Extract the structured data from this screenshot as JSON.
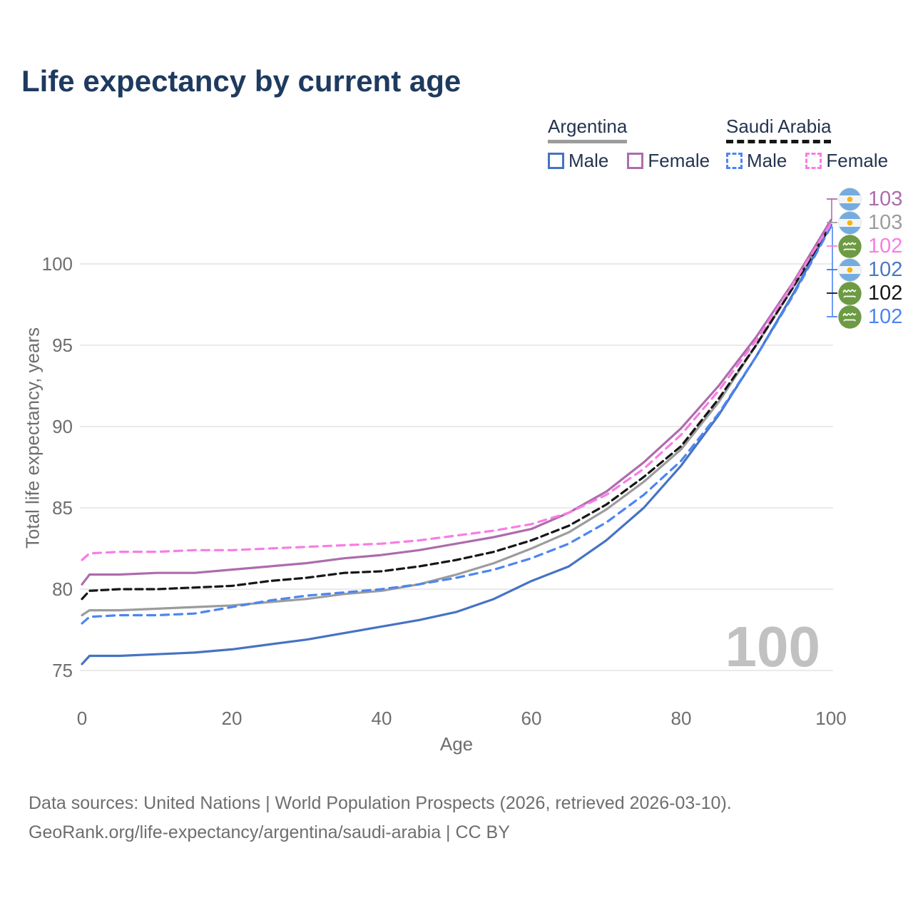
{
  "title": "Life expectancy by current age",
  "legend": {
    "groups": [
      {
        "country": "Argentina",
        "combined_line_style": "solid",
        "combined_line_color": "#9c9c9c",
        "items": [
          {
            "label": "Male",
            "color": "#4673c2",
            "dashed": false
          },
          {
            "label": "Female",
            "color": "#ad6cad",
            "dashed": false
          }
        ]
      },
      {
        "country": "Saudi Arabia",
        "combined_line_style": "dashed",
        "combined_line_color": "#161616",
        "items": [
          {
            "label": "Male",
            "color": "#4d85f2",
            "dashed": true
          },
          {
            "label": "Female",
            "color": "#f97ce3",
            "dashed": true
          }
        ]
      }
    ]
  },
  "chart_data": {
    "type": "line",
    "title": "Life expectancy by current age",
    "xlabel": "Age",
    "ylabel": "Total life expectancy, years",
    "xlim": [
      0,
      100
    ],
    "ylim": [
      73.5,
      103.5
    ],
    "x_ticks": [
      0,
      20,
      40,
      60,
      80,
      100
    ],
    "y_ticks": [
      75,
      80,
      85,
      90,
      95,
      100
    ],
    "grid": "horizontal",
    "legend_position": "top-right",
    "series": [
      {
        "name": "Argentina Both sexes",
        "country": "Argentina",
        "sex": "Both",
        "color": "#9c9c9c",
        "dash": false,
        "points": [
          [
            0,
            78.4
          ],
          [
            1,
            78.7
          ],
          [
            5,
            78.7
          ],
          [
            10,
            78.8
          ],
          [
            15,
            78.9
          ],
          [
            20,
            79.0
          ],
          [
            25,
            79.2
          ],
          [
            30,
            79.4
          ],
          [
            35,
            79.7
          ],
          [
            40,
            79.9
          ],
          [
            45,
            80.3
          ],
          [
            50,
            80.9
          ],
          [
            55,
            81.6
          ],
          [
            60,
            82.5
          ],
          [
            65,
            83.5
          ],
          [
            70,
            84.9
          ],
          [
            75,
            86.6
          ],
          [
            80,
            88.6
          ],
          [
            85,
            91.5
          ],
          [
            90,
            95.0
          ],
          [
            95,
            98.6
          ],
          [
            100,
            102.6
          ]
        ]
      },
      {
        "name": "Argentina Male",
        "country": "Argentina",
        "sex": "Male",
        "color": "#4673c2",
        "dash": false,
        "points": [
          [
            0,
            75.4
          ],
          [
            1,
            75.9
          ],
          [
            5,
            75.9
          ],
          [
            10,
            76.0
          ],
          [
            15,
            76.1
          ],
          [
            20,
            76.3
          ],
          [
            25,
            76.6
          ],
          [
            30,
            76.9
          ],
          [
            35,
            77.3
          ],
          [
            40,
            77.7
          ],
          [
            45,
            78.1
          ],
          [
            50,
            78.6
          ],
          [
            55,
            79.4
          ],
          [
            60,
            80.5
          ],
          [
            65,
            81.4
          ],
          [
            70,
            83.0
          ],
          [
            75,
            85.0
          ],
          [
            80,
            87.6
          ],
          [
            85,
            90.7
          ],
          [
            90,
            94.3
          ],
          [
            95,
            98.2
          ],
          [
            100,
            102.4
          ]
        ]
      },
      {
        "name": "Argentina Female",
        "country": "Argentina",
        "sex": "Female",
        "color": "#ad6cad",
        "dash": false,
        "points": [
          [
            0,
            80.3
          ],
          [
            1,
            80.9
          ],
          [
            5,
            80.9
          ],
          [
            10,
            81.0
          ],
          [
            15,
            81.0
          ],
          [
            20,
            81.2
          ],
          [
            25,
            81.4
          ],
          [
            30,
            81.6
          ],
          [
            35,
            81.9
          ],
          [
            40,
            82.1
          ],
          [
            45,
            82.4
          ],
          [
            50,
            82.8
          ],
          [
            55,
            83.2
          ],
          [
            60,
            83.7
          ],
          [
            65,
            84.7
          ],
          [
            70,
            86.0
          ],
          [
            75,
            87.8
          ],
          [
            80,
            89.9
          ],
          [
            85,
            92.5
          ],
          [
            90,
            95.5
          ],
          [
            95,
            98.9
          ],
          [
            100,
            102.7
          ]
        ]
      },
      {
        "name": "Saudi Arabia Both sexes",
        "country": "Saudi Arabia",
        "sex": "Both",
        "color": "#161616",
        "dash": true,
        "points": [
          [
            0,
            79.4
          ],
          [
            1,
            79.9
          ],
          [
            5,
            80.0
          ],
          [
            10,
            80.0
          ],
          [
            15,
            80.1
          ],
          [
            20,
            80.2
          ],
          [
            25,
            80.5
          ],
          [
            30,
            80.7
          ],
          [
            35,
            81.0
          ],
          [
            40,
            81.1
          ],
          [
            45,
            81.4
          ],
          [
            50,
            81.8
          ],
          [
            55,
            82.3
          ],
          [
            60,
            83.0
          ],
          [
            65,
            83.9
          ],
          [
            70,
            85.2
          ],
          [
            75,
            86.9
          ],
          [
            80,
            88.8
          ],
          [
            85,
            91.7
          ],
          [
            90,
            95.0
          ],
          [
            95,
            98.6
          ],
          [
            100,
            102.4
          ]
        ]
      },
      {
        "name": "Saudi Arabia Male",
        "country": "Saudi Arabia",
        "sex": "Male",
        "color": "#4d85f2",
        "dash": true,
        "points": [
          [
            0,
            77.9
          ],
          [
            1,
            78.3
          ],
          [
            5,
            78.4
          ],
          [
            10,
            78.4
          ],
          [
            15,
            78.5
          ],
          [
            20,
            78.9
          ],
          [
            25,
            79.3
          ],
          [
            30,
            79.6
          ],
          [
            35,
            79.8
          ],
          [
            40,
            80.0
          ],
          [
            45,
            80.3
          ],
          [
            50,
            80.7
          ],
          [
            55,
            81.2
          ],
          [
            60,
            81.9
          ],
          [
            65,
            82.8
          ],
          [
            70,
            84.1
          ],
          [
            75,
            85.8
          ],
          [
            80,
            87.9
          ],
          [
            85,
            90.8
          ],
          [
            90,
            94.3
          ],
          [
            95,
            98.1
          ],
          [
            100,
            102.3
          ]
        ]
      },
      {
        "name": "Saudi Arabia Female",
        "country": "Saudi Arabia",
        "sex": "Female",
        "color": "#f97ce3",
        "dash": true,
        "points": [
          [
            0,
            81.8
          ],
          [
            1,
            82.2
          ],
          [
            5,
            82.3
          ],
          [
            10,
            82.3
          ],
          [
            15,
            82.4
          ],
          [
            20,
            82.4
          ],
          [
            25,
            82.5
          ],
          [
            30,
            82.6
          ],
          [
            35,
            82.7
          ],
          [
            40,
            82.8
          ],
          [
            45,
            83.0
          ],
          [
            50,
            83.3
          ],
          [
            55,
            83.6
          ],
          [
            60,
            84.0
          ],
          [
            65,
            84.7
          ],
          [
            70,
            85.8
          ],
          [
            75,
            87.4
          ],
          [
            80,
            89.5
          ],
          [
            85,
            92.2
          ],
          [
            90,
            95.3
          ],
          [
            95,
            98.8
          ],
          [
            100,
            102.5
          ]
        ]
      }
    ]
  },
  "end_labels": [
    {
      "value": "103",
      "flag": "argentina",
      "color": "#ad6cad",
      "series": "Argentina Female"
    },
    {
      "value": "103",
      "flag": "argentina",
      "color": "#9c9c9c",
      "series": "Argentina Both sexes"
    },
    {
      "value": "102",
      "flag": "saudi-arabia",
      "color": "#f97ce3",
      "series": "Saudi Arabia Female"
    },
    {
      "value": "102",
      "flag": "argentina",
      "color": "#4a78c9",
      "series": "Argentina Male"
    },
    {
      "value": "102",
      "flag": "saudi-arabia",
      "color": "#161616",
      "series": "Saudi Arabia Both sexes"
    },
    {
      "value": "102",
      "flag": "saudi-arabia",
      "color": "#4d85f2",
      "series": "Saudi Arabia Male"
    }
  ],
  "watermark": "100",
  "footer": {
    "line1": "Data sources: United Nations | World Population Prospects (2026, retrieved 2026-03-10).",
    "line2": "GeoRank.org/life-expectancy/argentina/saudi-arabia | CC BY"
  },
  "colors": {
    "title": "#1e3a5f",
    "axis_text": "#6e6e6e",
    "gridline": "#e4e4e4",
    "watermark": "#c1c1c1"
  }
}
